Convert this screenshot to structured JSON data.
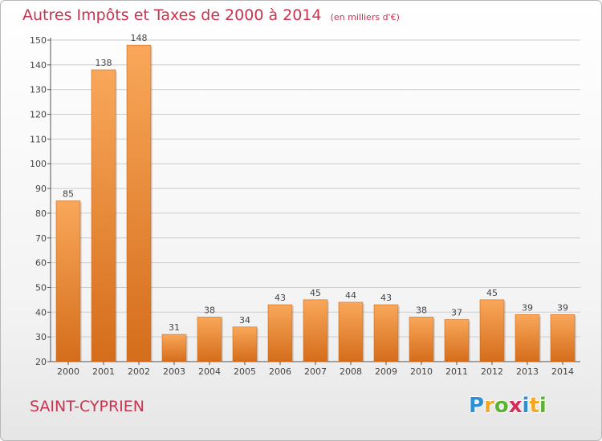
{
  "title": "Autres Impôts et Taxes de 2000 à 2014",
  "subtitle": "(en milliers d'€)",
  "place": "SAINT-CYPRIEN",
  "brand": {
    "text": "Proxiti",
    "letters": [
      "P",
      "r",
      "o",
      "x",
      "i",
      "t",
      "i"
    ],
    "colors": [
      "#2e8fd6",
      "#f5a623",
      "#5cb531",
      "#d62e5a",
      "#2e8fd6",
      "#f5a623",
      "#5cb531"
    ]
  },
  "colors": {
    "title": "#c8334f",
    "bar_light": "#f9a75a",
    "bar_dark": "#d46d1b",
    "grid": "#cccccc",
    "axis": "#555555"
  },
  "chart_data": {
    "type": "bar",
    "categories": [
      "2000",
      "2001",
      "2002",
      "2003",
      "2004",
      "2005",
      "2006",
      "2007",
      "2008",
      "2009",
      "2010",
      "2011",
      "2012",
      "2013",
      "2014"
    ],
    "values": [
      85,
      138,
      148,
      31,
      38,
      34,
      43,
      45,
      44,
      43,
      38,
      37,
      45,
      39,
      39
    ],
    "value_labels": [
      "85",
      "138",
      "148",
      "31",
      "38",
      "34",
      "43",
      "45",
      "44",
      "43",
      "38",
      "37",
      "45",
      "39",
      "39"
    ],
    "y_ticks": [
      "20",
      "30",
      "40",
      "50",
      "60",
      "70",
      "80",
      "90",
      "100",
      "110",
      "120",
      "130",
      "140",
      "150"
    ],
    "title": "Autres Impôts et Taxes de 2000 à 2014",
    "xlabel": "",
    "ylabel": "",
    "ylim": [
      20,
      150
    ],
    "grid": true,
    "legend": "none"
  }
}
